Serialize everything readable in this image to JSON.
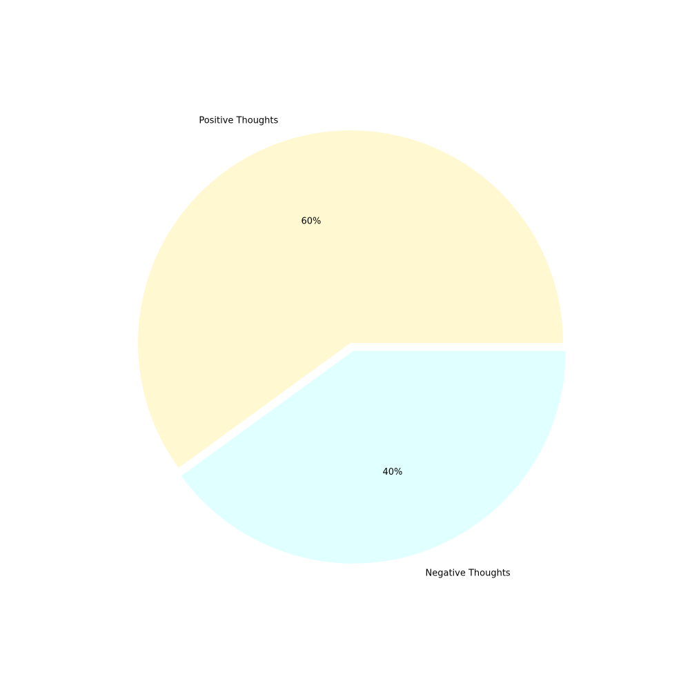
{
  "chart_data": {
    "type": "pie",
    "title": "",
    "labels": [
      "Positive Thoughts",
      "Negative Thoughts"
    ],
    "values": [
      60,
      40
    ],
    "percent_labels": [
      "60%",
      "40%"
    ],
    "colors": [
      "#fff8d0",
      "#e0ffff"
    ],
    "explode": [
      0,
      0.04
    ],
    "start_angle": 0,
    "direction": "counterclockwise"
  }
}
